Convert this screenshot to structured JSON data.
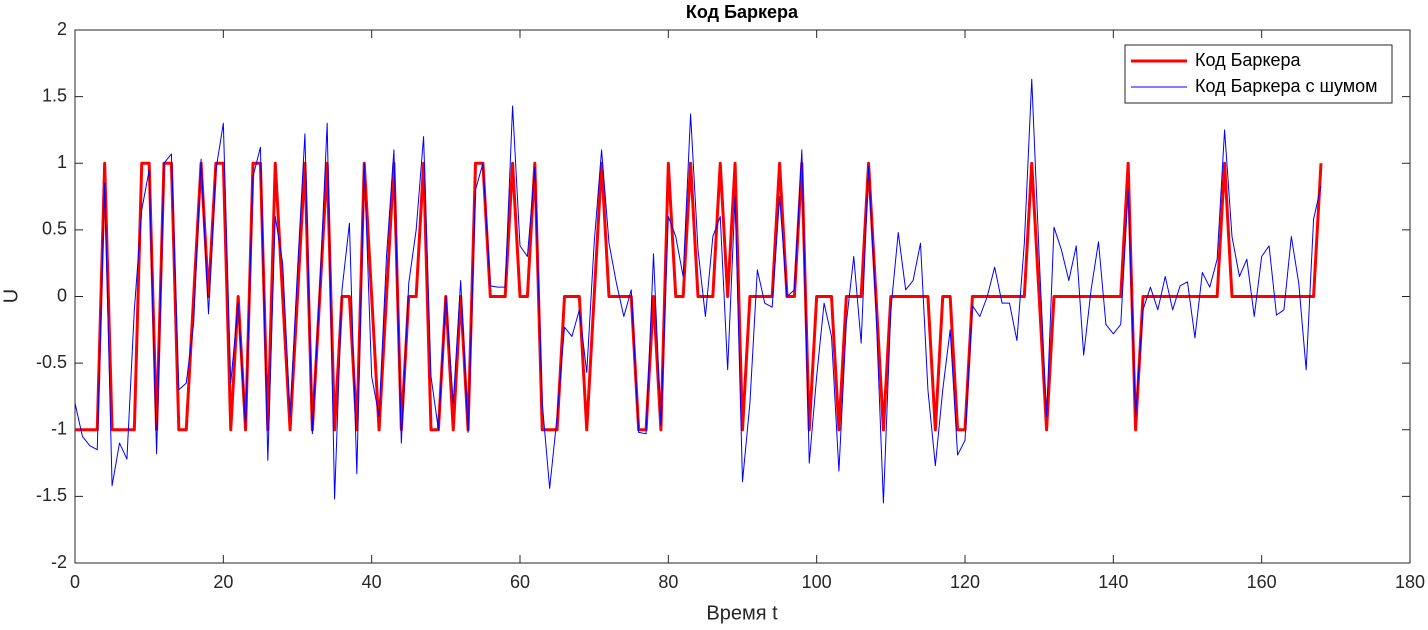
{
  "chart_data": {
    "type": "line",
    "title": "Код Баркера",
    "x_label": "Время t",
    "y_label": "U",
    "x": [
      0,
      1,
      2,
      3,
      4,
      5,
      6,
      7,
      8,
      9,
      10,
      11,
      12,
      13,
      14,
      15,
      16,
      17,
      18,
      19,
      20,
      21,
      22,
      23,
      24,
      25,
      26,
      27,
      28,
      29,
      30,
      31,
      32,
      33,
      34,
      35,
      36,
      37,
      38,
      39,
      40,
      41,
      42,
      43,
      44,
      45,
      46,
      47,
      48,
      49,
      50,
      51,
      52,
      53,
      54,
      55,
      56,
      57,
      58,
      59,
      60,
      61,
      62,
      63,
      64,
      65,
      66,
      67,
      68,
      69,
      70,
      71,
      72,
      73,
      74,
      75,
      76,
      77,
      78,
      79,
      80,
      81,
      82,
      83,
      84,
      85,
      86,
      87,
      88,
      89,
      90,
      91,
      92,
      93,
      94,
      95,
      96,
      97,
      98,
      99,
      100,
      101,
      102,
      103,
      104,
      105,
      106,
      107,
      108,
      109,
      110,
      111,
      112,
      113,
      114,
      115,
      116,
      117,
      118,
      119,
      120,
      121,
      122,
      123,
      124,
      125,
      126,
      127,
      128,
      129,
      130,
      131,
      132,
      133,
      134,
      135,
      136,
      137,
      138,
      139,
      140,
      141,
      142,
      143,
      144,
      145,
      146,
      147,
      148,
      149,
      150,
      151,
      152,
      153,
      154,
      155,
      156,
      157,
      158,
      159,
      160,
      161,
      162,
      163,
      164,
      165,
      166,
      167,
      168
    ],
    "series": [
      {
        "name": "Код Баркера",
        "color": "#ff0000",
        "width": 3,
        "values": [
          -1,
          -1,
          -1,
          -1,
          1,
          -1,
          -1,
          -1,
          -1,
          1,
          1,
          -1,
          1,
          1,
          -1,
          -1,
          0,
          1,
          0,
          1,
          1,
          -1,
          0,
          -1,
          1,
          1,
          -1,
          1,
          0,
          -1,
          0,
          1,
          -1,
          0,
          1,
          -1,
          0,
          0,
          -1,
          1,
          0,
          -1,
          0,
          1,
          -1,
          0,
          0,
          1,
          -1,
          -1,
          0,
          -1,
          0,
          -1,
          1,
          1,
          0,
          0,
          0,
          1,
          0,
          0,
          1,
          -1,
          -1,
          -1,
          0,
          0,
          0,
          -1,
          0,
          1,
          0,
          0,
          0,
          0,
          -1,
          -1,
          0,
          -1,
          1,
          0,
          0,
          1,
          0,
          0,
          0,
          1,
          0,
          1,
          -1,
          0,
          0,
          0,
          0,
          1,
          0,
          0,
          1,
          -1,
          0,
          0,
          0,
          -1,
          0,
          0,
          0,
          1,
          0,
          -1,
          0,
          0,
          0,
          0,
          0,
          0,
          -1,
          0,
          0,
          -1,
          -1,
          0,
          0,
          0,
          0,
          0,
          0,
          0,
          0,
          1,
          0,
          -1,
          0,
          0,
          0,
          0,
          0,
          0,
          0,
          0,
          0,
          0,
          1,
          -1,
          0,
          0,
          0,
          0,
          0,
          0,
          0,
          0,
          0,
          0,
          0,
          1,
          0,
          0,
          0,
          0,
          0,
          0,
          0,
          0,
          0,
          0,
          0,
          0,
          1
        ]
      },
      {
        "name": "Код Баркера с шумом",
        "color": "#0000ff",
        "width": 1,
        "values": [
          -0.8,
          -1.05,
          -1.12,
          -1.15,
          0.85,
          -1.42,
          -1.1,
          -1.22,
          -0.1,
          0.65,
          0.95,
          -1.18,
          1.0,
          1.07,
          -0.7,
          -0.65,
          -0.2,
          1.03,
          -0.13,
          0.95,
          1.3,
          -0.65,
          -0.05,
          -0.98,
          0.9,
          1.12,
          -1.23,
          0.6,
          0.25,
          -0.9,
          0.2,
          1.22,
          -1.03,
          0.05,
          1.3,
          -1.52,
          0.05,
          0.55,
          -1.33,
          1.0,
          -0.6,
          -0.9,
          0.3,
          1.1,
          -1.1,
          0.1,
          0.5,
          1.2,
          -0.6,
          -1.0,
          0.0,
          -0.8,
          0.12,
          -1.02,
          0.8,
          1.0,
          0.08,
          0.07,
          0.07,
          1.43,
          0.38,
          0.3,
          0.97,
          -0.8,
          -1.44,
          -0.9,
          -0.23,
          -0.3,
          -0.1,
          -0.57,
          0.4,
          1.1,
          0.4,
          0.1,
          -0.15,
          0.05,
          -1.02,
          -1.03,
          0.32,
          -0.97,
          0.6,
          0.45,
          0.15,
          1.37,
          0.35,
          -0.15,
          0.45,
          0.6,
          -0.55,
          0.75,
          -1.39,
          -0.8,
          0.2,
          -0.05,
          -0.08,
          0.75,
          0.0,
          0.05,
          1.1,
          -1.25,
          -0.6,
          -0.05,
          -0.3,
          -1.31,
          -0.2,
          0.3,
          -0.35,
          0.98,
          -0.1,
          -1.55,
          -0.1,
          0.48,
          0.05,
          0.12,
          0.4,
          -0.7,
          -1.27,
          -0.7,
          -0.25,
          -1.19,
          -1.08,
          -0.07,
          -0.15,
          0.0,
          0.22,
          -0.05,
          -0.05,
          -0.33,
          0.4,
          1.63,
          0.3,
          -0.9,
          0.52,
          0.35,
          0.12,
          0.38,
          -0.44,
          0.05,
          0.41,
          -0.21,
          -0.28,
          -0.21,
          0.8,
          -0.9,
          -0.1,
          0.07,
          -0.1,
          0.15,
          -0.1,
          0.08,
          0.11,
          -0.31,
          0.18,
          0.07,
          0.28,
          1.25,
          0.45,
          0.15,
          0.28,
          -0.15,
          0.3,
          0.38,
          -0.14,
          -0.1,
          0.45,
          0.1,
          -0.55,
          0.58,
          0.83
        ]
      }
    ],
    "xlim": [
      0,
      180
    ],
    "xticks": [
      0,
      20,
      40,
      60,
      80,
      100,
      120,
      140,
      160,
      180
    ],
    "ylim": [
      -2,
      2
    ],
    "yticks": [
      -2,
      -1.5,
      -1,
      -0.5,
      0,
      0.5,
      1,
      1.5,
      2
    ],
    "grid": false,
    "legend": "northeast"
  }
}
